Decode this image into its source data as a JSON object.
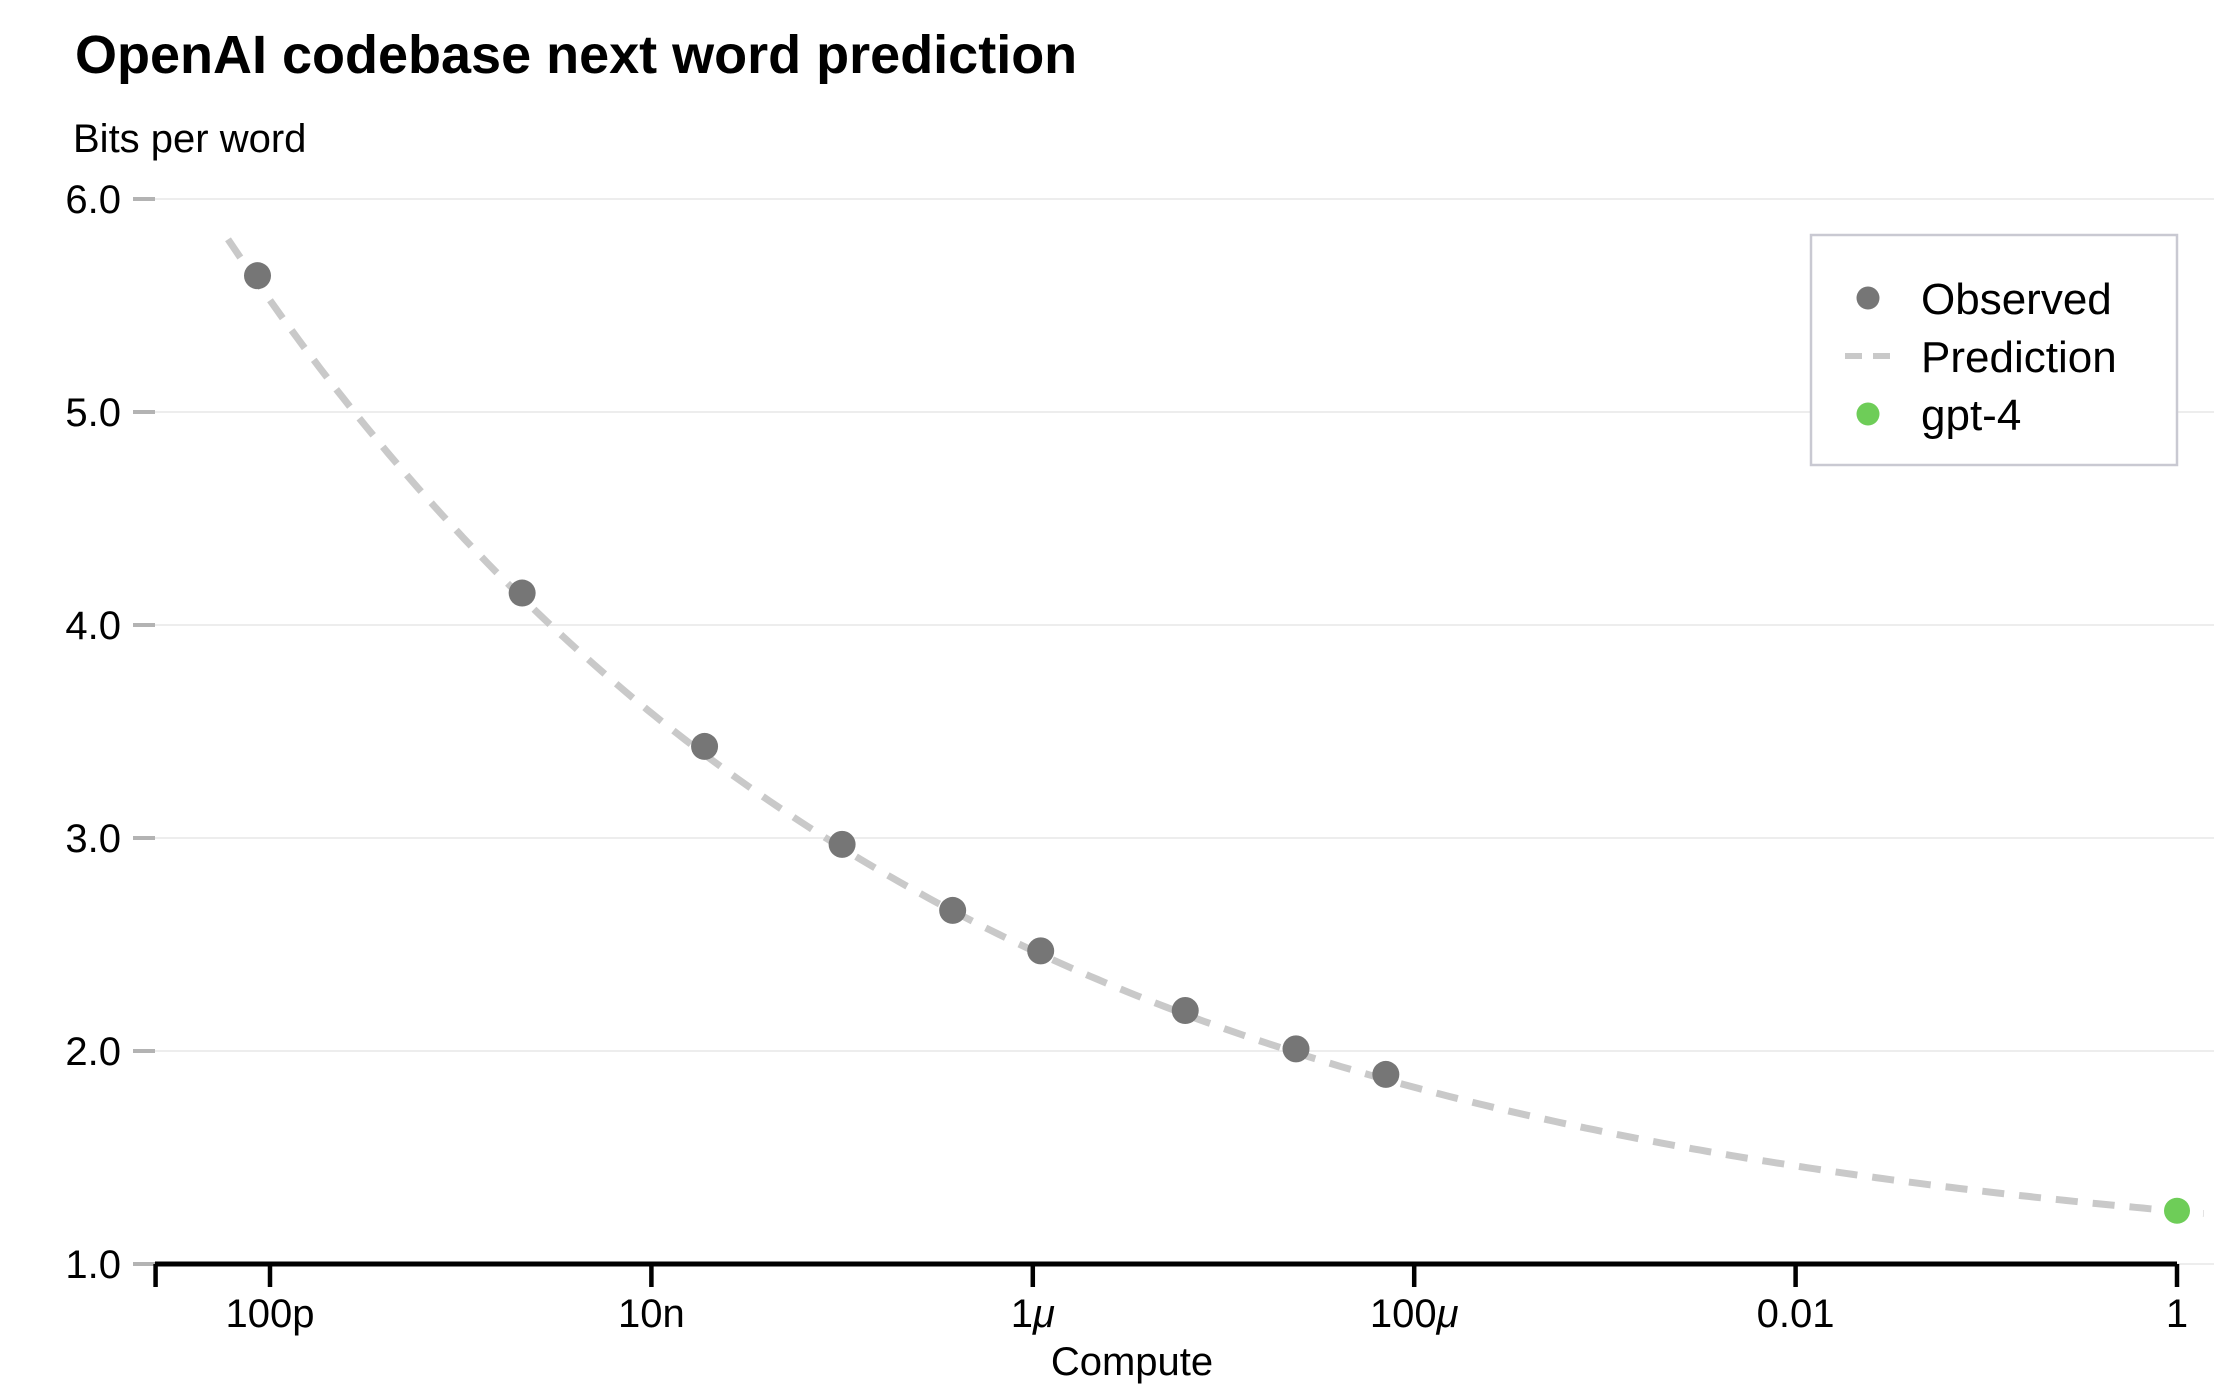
{
  "chart": {
    "title": "OpenAI codebase next word prediction",
    "y_axis_label": "Bits per word",
    "x_axis_label": "Compute"
  },
  "colors": {
    "observed": "#767676",
    "prediction": "#c9c9c9",
    "gpt4_green": "#6ecd58",
    "gridline": "#ededed",
    "y_tick": "#b3b3b3",
    "axis": "#000000",
    "legend_border": "#c9c9d2",
    "background": "#ffffff"
  },
  "legend": {
    "position": "upper-right",
    "items": [
      {
        "id": "observed",
        "label": "Observed",
        "marker": "dot",
        "color": "#767676"
      },
      {
        "id": "prediction",
        "label": "Prediction",
        "marker": "dashes",
        "color": "#c9c9c9"
      },
      {
        "id": "gpt4",
        "label": "gpt-4",
        "marker": "dot",
        "color": "#6ecd58"
      }
    ]
  },
  "chart_data": {
    "type": "scatter",
    "title": "OpenAI codebase next word prediction",
    "xlabel": "Compute",
    "ylabel": "Bits per word",
    "x_scale": "log10",
    "xlim_log10": [
      -10.6,
      0.19
    ],
    "ylim": [
      1.0,
      6.0
    ],
    "grid": "horizontal-only",
    "legend_position": "upper right",
    "y_ticks": [
      {
        "value": 6.0,
        "label": "6.0"
      },
      {
        "value": 5.0,
        "label": "5.0"
      },
      {
        "value": 4.0,
        "label": "4.0"
      },
      {
        "value": 3.0,
        "label": "3.0"
      },
      {
        "value": 2.0,
        "label": "2.0"
      },
      {
        "value": 1.0,
        "label": "1.0"
      }
    ],
    "x_ticks": [
      {
        "log10": -10.6,
        "label": ""
      },
      {
        "log10": -10,
        "label": "100p"
      },
      {
        "log10": -8,
        "label": "10n"
      },
      {
        "log10": -6,
        "label": "1μ"
      },
      {
        "log10": -4,
        "label": "100μ"
      },
      {
        "log10": -2,
        "label": "0.01"
      },
      {
        "log10": 0,
        "label": "1"
      }
    ],
    "series": [
      {
        "name": "Observed",
        "type": "scatter",
        "color": "#767676",
        "points": [
          {
            "compute": 8.6e-11,
            "bits_per_word": 5.64
          },
          {
            "compute": 2.1e-09,
            "bits_per_word": 4.15
          },
          {
            "compute": 1.9e-08,
            "bits_per_word": 3.43
          },
          {
            "compute": 1e-07,
            "bits_per_word": 2.97
          },
          {
            "compute": 3.8e-07,
            "bits_per_word": 2.66
          },
          {
            "compute": 1.1e-06,
            "bits_per_word": 2.47
          },
          {
            "compute": 6.3e-06,
            "bits_per_word": 2.19
          },
          {
            "compute": 2.4e-05,
            "bits_per_word": 2.01
          },
          {
            "compute": 7.1e-05,
            "bits_per_word": 1.89
          }
        ]
      },
      {
        "name": "Prediction",
        "type": "dashed_curve",
        "color": "#c9c9c9",
        "power_law": {
          "formula": "bits_per_word = a + b * compute^(-k)",
          "a": 0.96,
          "b": 0.288,
          "k": 0.12
        },
        "log10_compute_range": [
          -10.22,
          0.17
        ]
      },
      {
        "name": "gpt-4",
        "type": "scatter",
        "color": "#6ecd58",
        "points": [
          {
            "compute": 1.0,
            "bits_per_word": 1.25
          }
        ]
      }
    ]
  }
}
